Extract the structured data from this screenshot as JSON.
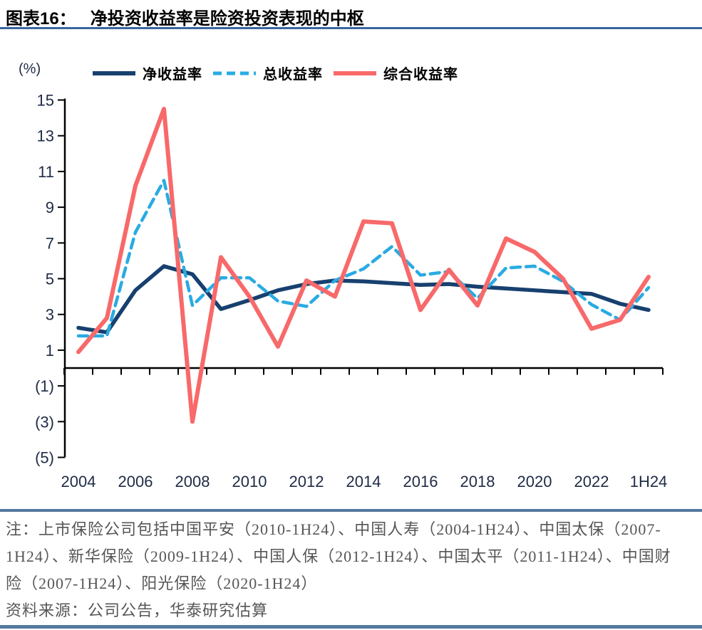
{
  "header": {
    "label": "图表16：",
    "title": "净投资收益率是险资投资表现的中枢"
  },
  "chart_data": {
    "type": "line",
    "unit_label": "(%)",
    "categories": [
      "2004",
      "2005",
      "2006",
      "2007",
      "2008",
      "2009",
      "2010",
      "2011",
      "2012",
      "2013",
      "2014",
      "2015",
      "2016",
      "2017",
      "2018",
      "2019",
      "2020",
      "2021",
      "2022",
      "2023",
      "1H24"
    ],
    "x_tick_labels": [
      "2004",
      "2006",
      "2008",
      "2010",
      "2012",
      "2014",
      "2016",
      "2018",
      "2020",
      "2022",
      "1H24"
    ],
    "y_ticks": [
      15,
      13,
      11,
      9,
      7,
      5,
      3,
      1,
      -1,
      -3,
      -5
    ],
    "ylim": [
      -5,
      15
    ],
    "negative_label_format": "parentheses",
    "grid": false,
    "legend_position": "top",
    "series": [
      {
        "key": "net-yield",
        "name": "净收益率",
        "color": "#17406f",
        "style": "solid",
        "values": [
          2.25,
          2.0,
          4.35,
          5.7,
          5.25,
          3.3,
          3.8,
          4.35,
          4.7,
          4.9,
          4.85,
          4.75,
          4.65,
          4.7,
          4.55,
          4.45,
          4.35,
          4.25,
          4.15,
          3.6,
          3.25
        ]
      },
      {
        "key": "total-yield",
        "name": "总收益率",
        "color": "#29abe2",
        "style": "dashed",
        "values": [
          1.8,
          1.8,
          7.6,
          10.5,
          3.5,
          5.05,
          5.05,
          3.75,
          3.45,
          4.9,
          5.55,
          6.8,
          5.2,
          5.4,
          3.9,
          5.6,
          5.7,
          4.85,
          3.55,
          2.7,
          4.5
        ]
      },
      {
        "key": "comprehensive-yield",
        "name": "综合收益率",
        "color": "#f8696a",
        "style": "solid",
        "values": [
          0.9,
          2.8,
          10.2,
          14.5,
          -3.0,
          6.2,
          4.0,
          1.2,
          4.9,
          4.0,
          8.2,
          8.1,
          3.25,
          5.5,
          3.5,
          7.25,
          6.5,
          5.0,
          2.2,
          2.7,
          5.1
        ]
      }
    ]
  },
  "notes": {
    "note": "注：上市保险公司包括中国平安（2010-1H24）、中国人寿（2004-1H24）、中国太保（2007-1H24）、新华保险（2009-1H24）、中国人保（2012-1H24）、中国太平（2011-1H24）、中国财险（2007-1H24）、阳光保险（2020-1H24）",
    "source": "资料来源：公司公告，华泰研究估算"
  },
  "colors": {
    "title_underline": "#39659e",
    "divider": "#54799f",
    "axis": "#000000",
    "axis_label": "#1e2b45",
    "note_text": "#565656"
  }
}
